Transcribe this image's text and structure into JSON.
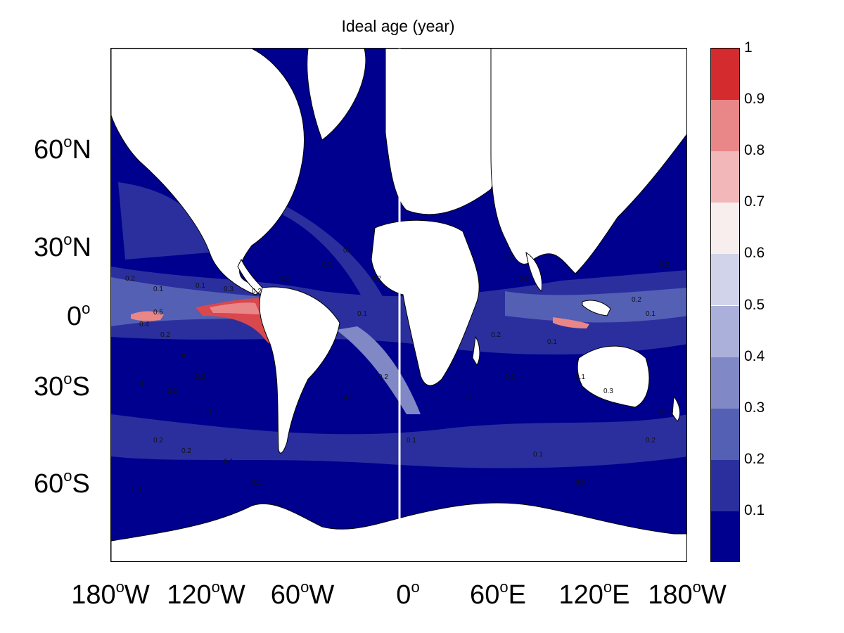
{
  "title": "Ideal age (year)",
  "map": {
    "projection": "mercator",
    "lon_range": [
      -180,
      180
    ],
    "lat_range": [
      -80,
      80
    ],
    "ocean_colors_low_to_high": [
      "#00008f",
      "#2b2f9e",
      "#5460b4",
      "#8088c6",
      "#aab0da",
      "#d1d3ea"
    ],
    "hotspot_colors": [
      "#f1b7b9",
      "#e98688",
      "#d9484c"
    ],
    "land_color": "#ffffff",
    "contour_labels": [
      "0.2",
      "0.1",
      "0.1",
      "0.3",
      "0.2",
      "0.1",
      "0.4",
      "0.5",
      "0.2",
      "0.1",
      "0.2",
      "0.1",
      "0.2",
      "0.1",
      "0.2",
      "0.2",
      "0.1",
      "0.1",
      "0.1",
      "0.2",
      "0.3",
      "0.1",
      "0.2",
      "0.1",
      "0.2",
      "0.1",
      "0.1",
      "0.2",
      "0.3",
      "0.2",
      "0.1",
      "0.1",
      "0.1",
      "0.3",
      "0.2",
      "0.1",
      "0.2",
      "0.1",
      "0.2",
      "0.1",
      "0.3",
      "0.1"
    ]
  },
  "yaxis": {
    "ticks": [
      {
        "value": "60",
        "deg": "o",
        "hemi": "N"
      },
      {
        "value": "30",
        "deg": "o",
        "hemi": "N"
      },
      {
        "value": "0",
        "deg": "o",
        "hemi": ""
      },
      {
        "value": "30",
        "deg": "o",
        "hemi": "S"
      },
      {
        "value": "60",
        "deg": "o",
        "hemi": "S"
      }
    ]
  },
  "xaxis": {
    "ticks": [
      {
        "value": "180",
        "deg": "o",
        "hemi": "W"
      },
      {
        "value": "120",
        "deg": "o",
        "hemi": "W"
      },
      {
        "value": "60",
        "deg": "o",
        "hemi": "W"
      },
      {
        "value": "0",
        "deg": "o",
        "hemi": ""
      },
      {
        "value": "60",
        "deg": "o",
        "hemi": "E"
      },
      {
        "value": "120",
        "deg": "o",
        "hemi": "E"
      },
      {
        "value": "180",
        "deg": "o",
        "hemi": "W"
      }
    ]
  },
  "colorbar": {
    "min": 0,
    "max": 1,
    "levels": [
      0,
      0.1,
      0.2,
      0.3,
      0.4,
      0.5,
      0.6,
      0.7,
      0.8,
      0.9,
      1.0
    ],
    "colors": [
      "#00008f",
      "#2b2f9e",
      "#5460b4",
      "#8088c6",
      "#aab0da",
      "#d1d3ea",
      "#f9eeee",
      "#f1b7b9",
      "#e98688",
      "#e05f62",
      "#d42b2e"
    ],
    "tick_labels": [
      "0.1",
      "0.2",
      "0.3",
      "0.4",
      "0.5",
      "0.6",
      "0.7",
      "0.8",
      "0.9",
      "1"
    ]
  }
}
